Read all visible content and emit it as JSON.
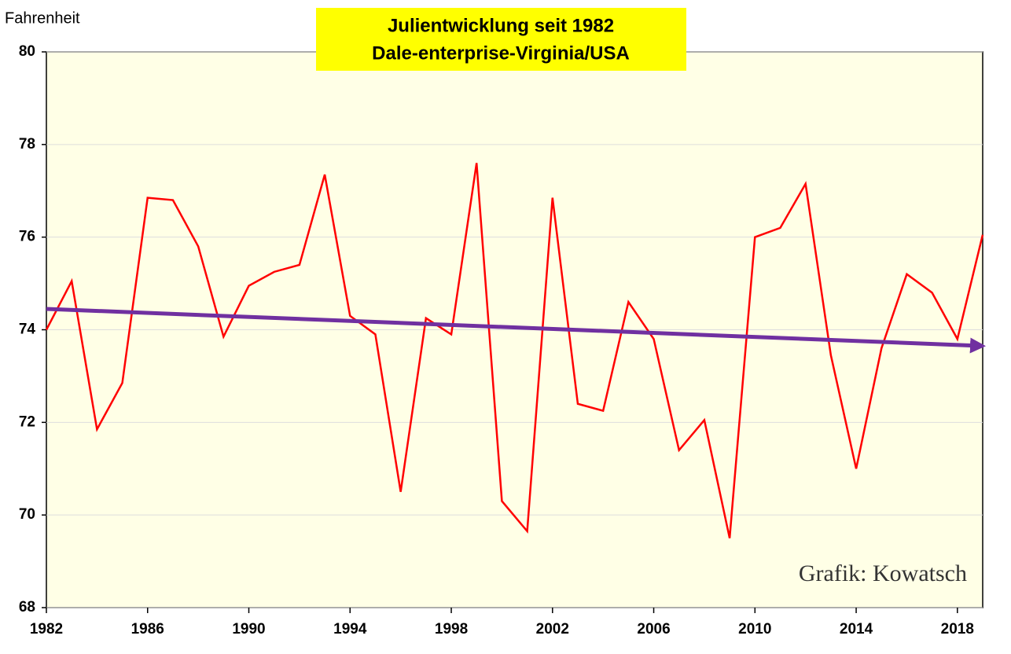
{
  "chart_data": {
    "type": "line",
    "title": [
      "Julientwicklung seit 1982",
      "Dale-enterprise-Virginia/USA"
    ],
    "ylabel": "Fahrenheit",
    "annotation": "Grafik: Kowatsch",
    "x": [
      1982,
      1983,
      1984,
      1985,
      1986,
      1987,
      1988,
      1989,
      1990,
      1991,
      1992,
      1993,
      1994,
      1995,
      1996,
      1997,
      1998,
      1999,
      2000,
      2001,
      2002,
      2003,
      2004,
      2005,
      2006,
      2007,
      2008,
      2009,
      2010,
      2011,
      2012,
      2013,
      2014,
      2015,
      2016,
      2017,
      2018,
      2019
    ],
    "values": [
      74.0,
      75.05,
      71.85,
      72.85,
      76.85,
      76.8,
      75.8,
      73.85,
      74.95,
      75.25,
      75.4,
      77.35,
      74.3,
      73.9,
      70.5,
      74.25,
      73.9,
      77.6,
      70.3,
      69.65,
      76.85,
      72.4,
      72.25,
      74.6,
      73.8,
      71.4,
      72.05,
      69.5,
      76.0,
      76.2,
      77.15,
      73.45,
      71.0,
      73.6,
      75.2,
      74.8,
      73.8,
      76.05
    ],
    "color": "#ff0000",
    "trend": {
      "x": [
        1982,
        2019
      ],
      "values": [
        74.45,
        73.65
      ],
      "color": "#7030a0"
    },
    "xlim": [
      1982,
      2019
    ],
    "xticks": [
      1982,
      1986,
      1990,
      1994,
      1998,
      2002,
      2006,
      2010,
      2014,
      2018
    ],
    "ylim": [
      68,
      80
    ],
    "yticks": [
      68,
      70,
      72,
      74,
      76,
      78,
      80
    ],
    "grid": true
  }
}
